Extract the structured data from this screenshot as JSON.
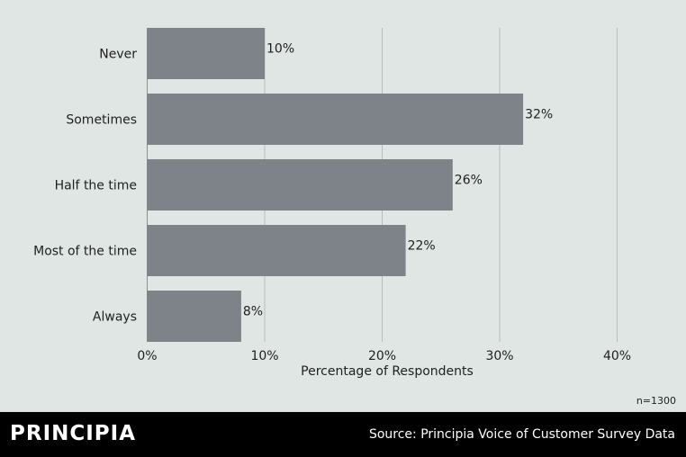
{
  "chart_data": {
    "type": "bar",
    "orientation": "horizontal",
    "categories": [
      "Never",
      "Sometimes",
      "Half the time",
      "Most of the time",
      "Always"
    ],
    "values": [
      10,
      32,
      26,
      22,
      8
    ],
    "value_labels": [
      "10%",
      "32%",
      "26%",
      "22%",
      "8%"
    ],
    "x_ticks": [
      0,
      10,
      20,
      30,
      40
    ],
    "x_tick_labels": [
      "0%",
      "10%",
      "20%",
      "30%",
      "40%"
    ],
    "xlabel": "Percentage of Respondents",
    "ylabel": "",
    "title": "",
    "xlim": [
      0,
      46
    ],
    "grid": "vertical",
    "bar_color": "#7e8289",
    "grid_color": "#b7bcbc"
  },
  "note": "n=1300",
  "footer": {
    "logo": "PRINCIPIA",
    "source": "Source: Principia Voice of Customer Survey Data"
  }
}
